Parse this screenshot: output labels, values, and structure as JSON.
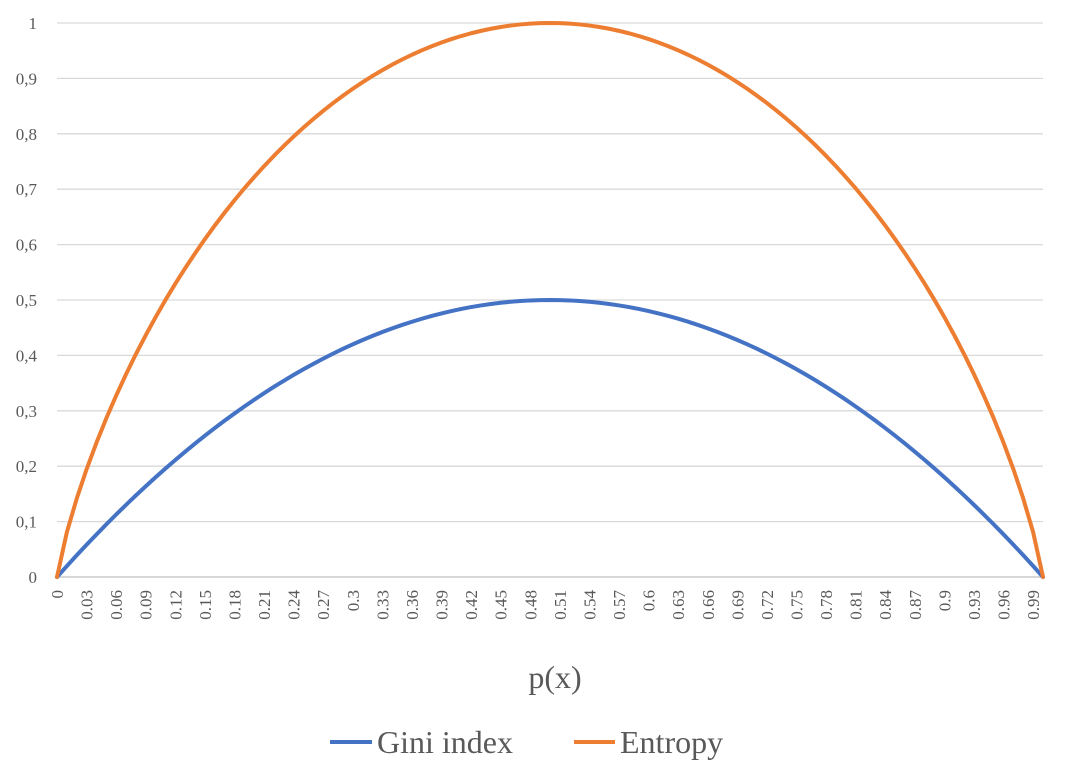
{
  "chart_data": {
    "type": "line",
    "title": "",
    "xlabel": "p(x)",
    "ylabel": "",
    "ylim": [
      0,
      1
    ],
    "y_ticks": [
      "0",
      "0,1",
      "0,2",
      "0,3",
      "0,4",
      "0,5",
      "0,6",
      "0,7",
      "0,8",
      "0,9",
      "1"
    ],
    "x_tick_labels": [
      "0",
      "0.03",
      "0.06",
      "0.09",
      "0.12",
      "0.15",
      "0.18",
      "0.21",
      "0.24",
      "0.27",
      "0.3",
      "0.33",
      "0.36",
      "0.39",
      "0.42",
      "0.45",
      "0.48",
      "0.51",
      "0.54",
      "0.57",
      "0.6",
      "0.63",
      "0.66",
      "0.69",
      "0.72",
      "0.75",
      "0.78",
      "0.81",
      "0.84",
      "0.87",
      "0.9",
      "0.93",
      "0.96",
      "0.99"
    ],
    "x_tick_every": 3,
    "x": [
      0,
      0.01,
      0.02,
      0.03,
      0.04,
      0.05,
      0.06,
      0.07,
      0.08,
      0.09,
      0.1,
      0.11,
      0.12,
      0.13,
      0.14,
      0.15,
      0.16,
      0.17,
      0.18,
      0.19,
      0.2,
      0.21,
      0.22,
      0.23,
      0.24,
      0.25,
      0.26,
      0.27,
      0.28,
      0.29,
      0.3,
      0.31,
      0.32,
      0.33,
      0.34,
      0.35,
      0.36,
      0.37,
      0.38,
      0.39,
      0.4,
      0.41,
      0.42,
      0.43,
      0.44,
      0.45,
      0.46,
      0.47,
      0.48,
      0.49,
      0.5,
      0.51,
      0.52,
      0.53,
      0.54,
      0.55,
      0.56,
      0.57,
      0.58,
      0.59,
      0.6,
      0.61,
      0.62,
      0.63,
      0.64,
      0.65,
      0.66,
      0.67,
      0.68,
      0.69,
      0.7,
      0.71,
      0.72,
      0.73,
      0.74,
      0.75,
      0.76,
      0.77,
      0.78,
      0.79,
      0.8,
      0.81,
      0.82,
      0.83,
      0.84,
      0.85,
      0.86,
      0.87,
      0.88,
      0.89,
      0.9,
      0.91,
      0.92,
      0.93,
      0.94,
      0.95,
      0.96,
      0.97,
      0.98,
      0.99,
      1
    ],
    "grid": true,
    "legend_position": "bottom",
    "series": [
      {
        "name": "Gini index",
        "color": "#4472C4",
        "values": [
          0,
          0.0198,
          0.0392,
          0.0582,
          0.0768,
          0.095,
          0.1128,
          0.1302,
          0.1472,
          0.1638,
          0.18,
          0.1958,
          0.2112,
          0.2262,
          0.2408,
          0.255,
          0.2688,
          0.2822,
          0.2952,
          0.3078,
          0.32,
          0.3318,
          0.3432,
          0.3542,
          0.3648,
          0.375,
          0.3848,
          0.3942,
          0.4032,
          0.4118,
          0.42,
          0.4278,
          0.4352,
          0.4422,
          0.4488,
          0.455,
          0.4608,
          0.4662,
          0.4712,
          0.4758,
          0.48,
          0.4838,
          0.4872,
          0.4902,
          0.4928,
          0.495,
          0.4968,
          0.4982,
          0.4992,
          0.4998,
          0.5,
          0.4998,
          0.4992,
          0.4982,
          0.4968,
          0.495,
          0.4928,
          0.4902,
          0.4872,
          0.4838,
          0.48,
          0.4758,
          0.4712,
          0.4662,
          0.4608,
          0.455,
          0.4488,
          0.4422,
          0.4352,
          0.4278,
          0.42,
          0.4118,
          0.4032,
          0.3942,
          0.3848,
          0.375,
          0.3648,
          0.3542,
          0.3432,
          0.3318,
          0.32,
          0.3078,
          0.2952,
          0.2822,
          0.2688,
          0.255,
          0.2408,
          0.2262,
          0.2112,
          0.1958,
          0.18,
          0.1638,
          0.1472,
          0.1302,
          0.1128,
          0.095,
          0.0768,
          0.0582,
          0.0392,
          0.0198,
          0
        ]
      },
      {
        "name": "Entropy",
        "color": "#ED7D31",
        "values": [
          0,
          0.0808,
          0.1414,
          0.1944,
          0.2423,
          0.2864,
          0.3274,
          0.3659,
          0.4022,
          0.4365,
          0.469,
          0.4999,
          0.5294,
          0.5574,
          0.5842,
          0.6098,
          0.6343,
          0.6577,
          0.6801,
          0.7015,
          0.7219,
          0.7415,
          0.7602,
          0.778,
          0.795,
          0.8113,
          0.8267,
          0.8415,
          0.8555,
          0.8687,
          0.8813,
          0.8932,
          0.9044,
          0.9149,
          0.9248,
          0.9341,
          0.9427,
          0.9507,
          0.958,
          0.9648,
          0.971,
          0.9765,
          0.9815,
          0.9858,
          0.9896,
          0.9928,
          0.9954,
          0.9974,
          0.9988,
          0.9997,
          1,
          0.9997,
          0.9988,
          0.9974,
          0.9954,
          0.9928,
          0.9896,
          0.9858,
          0.9815,
          0.9765,
          0.971,
          0.9648,
          0.958,
          0.9507,
          0.9427,
          0.9341,
          0.9248,
          0.9149,
          0.9044,
          0.8932,
          0.8813,
          0.8687,
          0.8555,
          0.8415,
          0.8267,
          0.8113,
          0.795,
          0.778,
          0.7602,
          0.7415,
          0.7219,
          0.7015,
          0.6801,
          0.6577,
          0.6343,
          0.6098,
          0.5842,
          0.5574,
          0.5294,
          0.4999,
          0.469,
          0.4365,
          0.4022,
          0.3659,
          0.3274,
          0.2864,
          0.2423,
          0.1944,
          0.1414,
          0.0808,
          0
        ]
      }
    ]
  }
}
